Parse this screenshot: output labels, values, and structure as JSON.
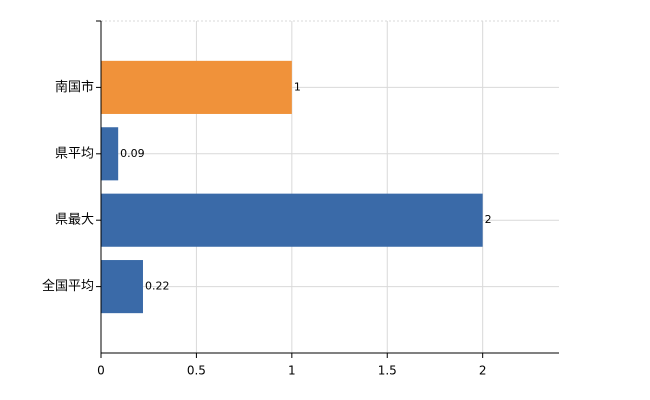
{
  "chart_data": {
    "type": "bar",
    "orientation": "horizontal",
    "categories": [
      "南国市",
      "県平均",
      "県最大",
      "全国平均"
    ],
    "values": [
      1,
      0.09,
      2,
      0.22
    ],
    "colors": [
      "#f0923a",
      "#3a6aa8",
      "#3a6aa8",
      "#3a6aa8"
    ],
    "xlim": [
      0,
      2.4
    ],
    "xticks": [
      0,
      0.5,
      1,
      1.5,
      2
    ],
    "grid": true
  }
}
